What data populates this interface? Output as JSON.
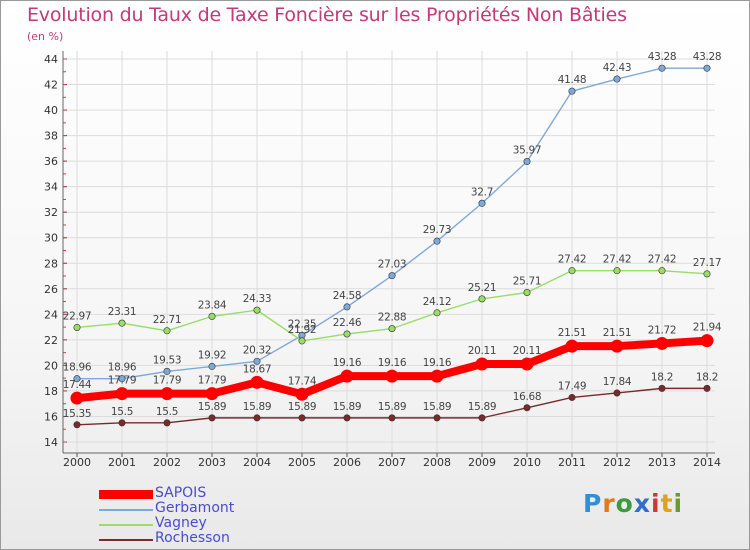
{
  "title": "Evolution du Taux de Taxe Foncière sur les Propriétés Non Bâties",
  "subtitle": "(en %)",
  "logo_text": "Proxiti",
  "chart_data": {
    "type": "line",
    "x": [
      "2000",
      "2001",
      "2002",
      "2003",
      "2004",
      "2005",
      "2006",
      "2007",
      "2008",
      "2009",
      "2010",
      "2011",
      "2012",
      "2013",
      "2014"
    ],
    "ylim": [
      14,
      44
    ],
    "yticks": [
      14,
      16,
      18,
      20,
      22,
      24,
      26,
      28,
      30,
      32,
      34,
      36,
      38,
      40,
      42,
      44
    ],
    "grid": true,
    "legend_position": "bottom-left",
    "series": [
      {
        "name": "SAPOIS",
        "color": "#ff0000",
        "values": [
          17.44,
          17.79,
          17.79,
          17.79,
          18.67,
          17.74,
          19.16,
          19.16,
          19.16,
          20.11,
          20.11,
          21.51,
          21.51,
          21.72,
          21.94
        ],
        "labels": [
          "17.44",
          "17.79",
          "17.79",
          "17.79",
          "18.67",
          "17.74",
          "19.16",
          "19.16",
          "19.16",
          "20.11",
          "20.11",
          "21.51",
          "21.51",
          "21.72",
          "21.94"
        ]
      },
      {
        "name": "Gerbamont",
        "color": "#7fa8d8",
        "values": [
          18.96,
          18.96,
          19.53,
          19.92,
          20.32,
          22.35,
          24.58,
          27.03,
          29.73,
          32.7,
          35.97,
          41.48,
          42.43,
          43.28,
          43.28
        ],
        "labels": [
          "18.96",
          "18.96",
          "19.53",
          "19.92",
          "20.32",
          "22.35",
          "24.58",
          "27.03",
          "29.73",
          "32.7",
          "35.97",
          "41.48",
          "42.43",
          "43.28",
          "43.28"
        ]
      },
      {
        "name": "Vagney",
        "color": "#99dd66",
        "values": [
          22.97,
          23.31,
          22.71,
          23.84,
          24.33,
          21.92,
          22.46,
          22.88,
          24.12,
          25.21,
          25.71,
          27.42,
          27.42,
          27.42,
          27.17
        ],
        "labels": [
          "22.97",
          "23.31",
          "22.71",
          "23.84",
          "24.33",
          "21.92",
          "22.46",
          "22.88",
          "24.12",
          "25.21",
          "25.71",
          "27.42",
          "27.42",
          "27.42",
          "27.17"
        ]
      },
      {
        "name": "Rochesson",
        "color": "#7a2a2a",
        "values": [
          15.35,
          15.5,
          15.5,
          15.89,
          15.89,
          15.89,
          15.89,
          15.89,
          15.89,
          15.89,
          16.68,
          17.49,
          17.84,
          18.2,
          18.2
        ],
        "labels": [
          "15.35",
          "15.5",
          "15.5",
          "15.89",
          "15.89",
          "15.89",
          "15.89",
          "15.89",
          "15.89",
          "15.89",
          "16.68",
          "17.49",
          "17.84",
          "18.2",
          "18.2"
        ]
      }
    ]
  }
}
